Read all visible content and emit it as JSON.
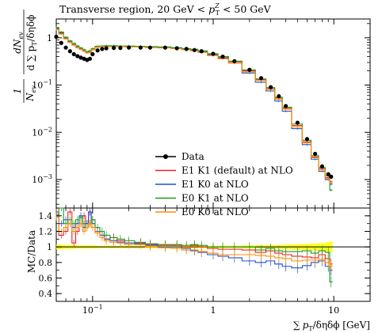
{
  "chart_data": [
    {
      "type": "line",
      "panel": "main",
      "title": "Transverse region, 20 GeV < p_T^Z < 50 GeV",
      "title_parts": {
        "prefix": "Transverse region, 20 GeV < ",
        "var": "p",
        "sub": "T",
        "sup": "Z",
        "suffix": " < 50 GeV"
      },
      "ylabel_parts": {
        "frac_top": "dN",
        "frac_top_sub": "ev",
        "frac_bottom": "d ∑ p",
        "frac_bottom_sub": "T",
        "frac_bottom_tail": "/δηδϕ",
        "prefactor_top": "1",
        "prefactor_bottom": "N",
        "prefactor_bottom_sub": "ev"
      },
      "x_scale": "log",
      "y_scale": "log",
      "xlim": [
        0.05,
        20
      ],
      "ylim": [
        0.00025,
        2.5
      ],
      "y_ticks": [
        {
          "value": 1,
          "label": "1"
        },
        {
          "value": 0.1,
          "label": "10",
          "exp": "−1"
        },
        {
          "value": 0.01,
          "label": "10",
          "exp": "−2"
        },
        {
          "value": 0.001,
          "label": "10",
          "exp": "−3"
        }
      ],
      "legend_position": "lower-left",
      "x": [
        0.05,
        0.055,
        0.06,
        0.065,
        0.07,
        0.075,
        0.08,
        0.085,
        0.09,
        0.095,
        0.1,
        0.11,
        0.12,
        0.13,
        0.15,
        0.17,
        0.2,
        0.25,
        0.3,
        0.4,
        0.5,
        0.6,
        0.7,
        0.8,
        1.0,
        1.2,
        1.5,
        2.0,
        2.5,
        3.0,
        3.5,
        4.0,
        5.0,
        6.0,
        7.0,
        8.0,
        9.0,
        9.5
      ],
      "series": [
        {
          "name": "Data",
          "color": "#000000",
          "style": "points",
          "values": [
            1.05,
            0.78,
            0.62,
            0.52,
            0.45,
            0.41,
            0.38,
            0.36,
            0.34,
            0.36,
            0.45,
            0.54,
            0.58,
            0.6,
            0.61,
            0.61,
            0.62,
            0.62,
            0.62,
            0.62,
            0.6,
            0.58,
            0.55,
            0.52,
            0.46,
            0.4,
            0.32,
            0.21,
            0.14,
            0.09,
            0.058,
            0.036,
            0.016,
            0.0072,
            0.0035,
            0.0019,
            0.0013,
            0.00115
          ]
        },
        {
          "name": "E1 K1 (default) at NLO",
          "color": "#ee1c24",
          "style": "step",
          "values": [
            1.6,
            1.3,
            1.0,
            0.85,
            0.75,
            0.66,
            0.6,
            0.55,
            0.5,
            0.52,
            0.58,
            0.65,
            0.66,
            0.67,
            0.67,
            0.66,
            0.66,
            0.65,
            0.64,
            0.63,
            0.61,
            0.58,
            0.56,
            0.52,
            0.45,
            0.39,
            0.31,
            0.2,
            0.13,
            0.085,
            0.053,
            0.032,
            0.014,
            0.0063,
            0.003,
            0.0017,
            0.0011,
            0.0009
          ]
        },
        {
          "name": "E1 K0 at NLO",
          "color": "#1f4fd1",
          "style": "step",
          "values": [
            1.55,
            1.25,
            0.98,
            0.82,
            0.72,
            0.64,
            0.58,
            0.53,
            0.49,
            0.5,
            0.57,
            0.64,
            0.66,
            0.66,
            0.66,
            0.66,
            0.65,
            0.65,
            0.63,
            0.62,
            0.6,
            0.57,
            0.54,
            0.5,
            0.43,
            0.37,
            0.29,
            0.18,
            0.115,
            0.075,
            0.046,
            0.028,
            0.012,
            0.0055,
            0.0027,
            0.0015,
            0.001,
            0.0008
          ]
        },
        {
          "name": "E0 K1 at NLO",
          "color": "#1e9a1e",
          "style": "step",
          "values": [
            1.65,
            1.32,
            1.03,
            0.86,
            0.76,
            0.67,
            0.61,
            0.56,
            0.51,
            0.53,
            0.59,
            0.66,
            0.67,
            0.68,
            0.68,
            0.67,
            0.67,
            0.66,
            0.65,
            0.64,
            0.62,
            0.59,
            0.57,
            0.53,
            0.46,
            0.4,
            0.32,
            0.21,
            0.135,
            0.088,
            0.055,
            0.034,
            0.015,
            0.0068,
            0.0032,
            0.0018,
            0.0012,
            0.0006
          ]
        },
        {
          "name": "E0 K0 at NLO",
          "color": "#ff8c00",
          "style": "step",
          "values": [
            1.5,
            1.2,
            0.95,
            0.8,
            0.7,
            0.62,
            0.57,
            0.52,
            0.48,
            0.49,
            0.56,
            0.63,
            0.65,
            0.65,
            0.65,
            0.65,
            0.64,
            0.64,
            0.62,
            0.61,
            0.59,
            0.56,
            0.53,
            0.49,
            0.42,
            0.36,
            0.29,
            0.19,
            0.125,
            0.08,
            0.05,
            0.031,
            0.013,
            0.006,
            0.0029,
            0.0016,
            0.00105,
            0.00085
          ]
        }
      ]
    },
    {
      "type": "line",
      "panel": "ratio",
      "ylabel": "MC/Data",
      "x_scale": "log",
      "xlim": [
        0.05,
        20
      ],
      "ylim": [
        0.3,
        1.5
      ],
      "y_ticks": [
        {
          "value": 0.4,
          "label": "0.4"
        },
        {
          "value": 0.6,
          "label": "0.6"
        },
        {
          "value": 0.8,
          "label": "0.8"
        },
        {
          "value": 1.0,
          "label": "1"
        },
        {
          "value": 1.2,
          "label": "1.2"
        },
        {
          "value": 1.4,
          "label": "1.4"
        }
      ],
      "x_ticks": [
        {
          "value": 0.1,
          "label": "10",
          "exp": "−1"
        },
        {
          "value": 1,
          "label": "1"
        },
        {
          "value": 10,
          "label": "10"
        }
      ],
      "xlabel_parts": {
        "sum": "∑",
        "var": "p",
        "sub": "T",
        "tail": "/δηδϕ [GeV]"
      },
      "band": {
        "color": "#ffff00",
        "low": [
          0.965,
          0.97,
          0.975,
          0.975,
          0.975,
          0.98,
          0.98,
          0.98,
          0.98,
          0.98,
          0.98,
          0.985,
          0.985,
          0.985,
          0.985,
          0.985,
          0.985,
          0.985,
          0.985,
          0.985,
          0.985,
          0.985,
          0.985,
          0.985,
          0.985,
          0.985,
          0.985,
          0.98,
          0.98,
          0.975,
          0.975,
          0.97,
          0.965,
          0.96,
          0.955,
          0.95,
          0.94,
          0.93
        ],
        "high": [
          1.035,
          1.03,
          1.025,
          1.025,
          1.025,
          1.02,
          1.02,
          1.02,
          1.02,
          1.02,
          1.02,
          1.015,
          1.015,
          1.015,
          1.015,
          1.015,
          1.015,
          1.015,
          1.015,
          1.015,
          1.015,
          1.015,
          1.015,
          1.015,
          1.015,
          1.015,
          1.015,
          1.02,
          1.02,
          1.025,
          1.025,
          1.03,
          1.035,
          1.04,
          1.045,
          1.05,
          1.06,
          1.07
        ]
      },
      "series": [
        {
          "name": "E1 K1 (default) at NLO",
          "color": "#ee1c24",
          "values": [
            1.45,
            1.15,
            1.2,
            1.45,
            1.05,
            1.2,
            1.3,
            1.4,
            1.3,
            1.45,
            1.35,
            1.2,
            1.15,
            1.1,
            1.12,
            1.08,
            1.05,
            1.05,
            1.03,
            1.02,
            1.02,
            1.0,
            1.02,
            1.0,
            0.98,
            0.97,
            0.97,
            0.96,
            0.93,
            0.95,
            0.92,
            0.9,
            0.88,
            0.87,
            0.86,
            0.9,
            0.85,
            0.78
          ]
        },
        {
          "name": "E1 K0 at NLO",
          "color": "#1f4fd1",
          "values": [
            1.42,
            1.3,
            1.35,
            1.3,
            1.25,
            1.3,
            1.4,
            1.25,
            1.3,
            1.45,
            1.3,
            1.2,
            1.15,
            1.1,
            1.08,
            1.06,
            1.05,
            1.04,
            1.02,
            1.0,
            1.0,
            0.98,
            0.95,
            0.93,
            0.9,
            0.88,
            0.86,
            0.82,
            0.8,
            0.82,
            0.78,
            0.75,
            0.73,
            0.76,
            0.8,
            0.82,
            0.75,
            0.7
          ]
        },
        {
          "name": "E0 K1 at NLO",
          "color": "#1e9a1e",
          "values": [
            1.4,
            1.5,
            1.3,
            1.35,
            1.3,
            1.35,
            1.38,
            1.3,
            1.25,
            1.3,
            1.35,
            1.25,
            1.2,
            1.15,
            1.12,
            1.1,
            1.08,
            1.06,
            1.04,
            1.03,
            1.03,
            1.02,
            1.03,
            1.02,
            1.0,
            1.0,
            1.0,
            1.0,
            0.96,
            0.98,
            0.95,
            0.94,
            0.94,
            0.95,
            0.92,
            0.95,
            0.93,
            0.55
          ]
        },
        {
          "name": "E0 K0 at NLO",
          "color": "#ff8c00",
          "values": [
            1.38,
            1.2,
            1.25,
            1.3,
            1.2,
            1.25,
            1.3,
            1.2,
            1.25,
            1.3,
            1.25,
            1.18,
            1.12,
            1.08,
            1.06,
            1.05,
            1.03,
            1.03,
            1.0,
            0.99,
            0.98,
            0.96,
            0.96,
            0.94,
            0.92,
            0.9,
            0.9,
            0.9,
            0.89,
            0.88,
            0.86,
            0.85,
            0.82,
            0.83,
            0.83,
            0.84,
            0.8,
            0.75
          ]
        }
      ]
    }
  ]
}
